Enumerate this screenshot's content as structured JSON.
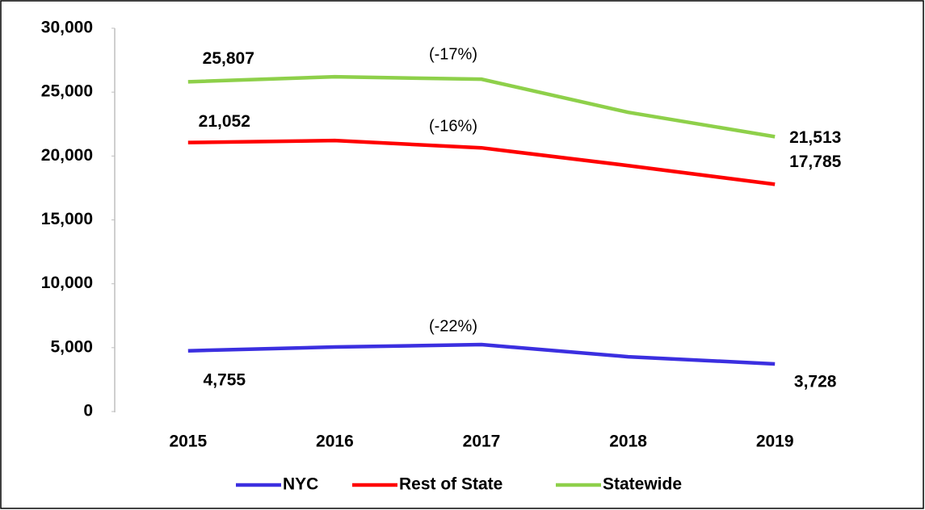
{
  "chart_data": {
    "type": "line",
    "categories": [
      "2015",
      "2016",
      "2017",
      "2018",
      "2019"
    ],
    "series": [
      {
        "name": "NYC",
        "color": "#3b2fe0",
        "values": [
          4755,
          5050,
          5240,
          4290,
          3728
        ],
        "value_labels": [
          "4,755",
          null,
          null,
          null,
          "3,728"
        ],
        "change": "(-22%)"
      },
      {
        "name": "Rest of State",
        "color": "#ff0000",
        "values": [
          21052,
          21210,
          20640,
          19250,
          17785
        ],
        "value_labels": [
          "21,052",
          null,
          null,
          null,
          "17,785"
        ],
        "change": "(-16%)"
      },
      {
        "name": "Statewide",
        "color": "#8ed04a",
        "values": [
          25807,
          26200,
          26010,
          23420,
          21513
        ],
        "value_labels": [
          "25,807",
          null,
          null,
          null,
          "21,513"
        ],
        "change": "(-17%)"
      }
    ],
    "ylim": [
      0,
      30000
    ],
    "yticks": [
      0,
      {
        "value": 5000,
        "label": "5,000"
      },
      {
        "value": 10000,
        "label": "10,000"
      },
      {
        "value": 15000,
        "label": "15,000"
      },
      {
        "value": 20000,
        "label": "20,000"
      },
      {
        "value": 25000,
        "label": "25,000"
      },
      {
        "value": 30000,
        "label": "30,000"
      }
    ],
    "grid": false,
    "legend": "bottom"
  }
}
